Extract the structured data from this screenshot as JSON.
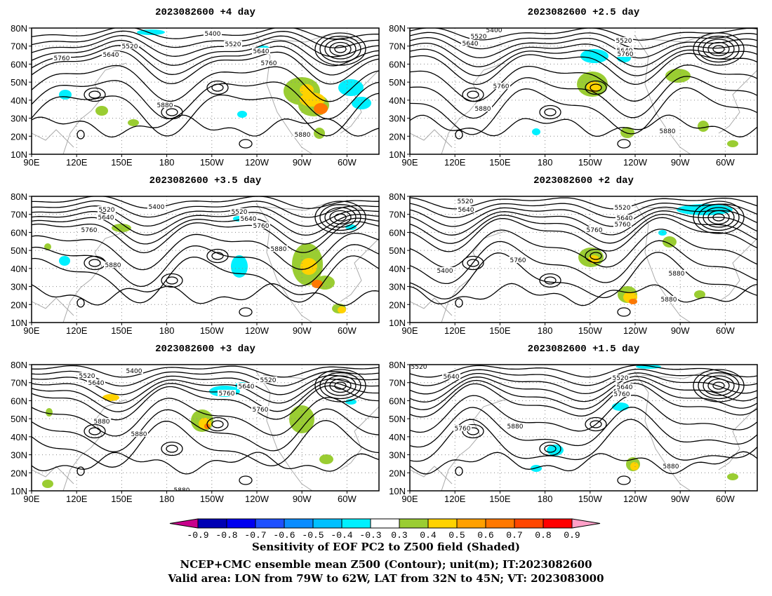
{
  "panels": [
    {
      "title": "2023082600  +4 day",
      "contour_labels": [
        "5400",
        "5520",
        "5520",
        "5640",
        "5640",
        "5760",
        "5760",
        "5880",
        "5880"
      ]
    },
    {
      "title": "2023082600  +2.5 day",
      "contour_labels": [
        "5400",
        "5520",
        "5520",
        "5640",
        "5640",
        "5760",
        "5760",
        "5880",
        "5880"
      ]
    },
    {
      "title": "2023082600  +3.5 day",
      "contour_labels": [
        "5400",
        "5520",
        "5520",
        "5640",
        "5640",
        "5760",
        "5760",
        "5880",
        "5880"
      ]
    },
    {
      "title": "2023082600  +2 day",
      "contour_labels": [
        "5520",
        "5520",
        "5640",
        "5640",
        "5760",
        "5760",
        "5400",
        "5760",
        "5880",
        "5880"
      ]
    },
    {
      "title": "2023082600  +3 day",
      "contour_labels": [
        "5400",
        "5520",
        "5520",
        "5640",
        "5640",
        "5760",
        "5760",
        "5880",
        "5880",
        "5880"
      ]
    },
    {
      "title": "2023082600  +1.5 day",
      "contour_labels": [
        "5520",
        "5640",
        "5520",
        "5640",
        "5760",
        "5760",
        "5880",
        "5880"
      ]
    }
  ],
  "lat_labels": [
    "80N",
    "70N",
    "60N",
    "50N",
    "40N",
    "30N",
    "20N",
    "10N"
  ],
  "lon_labels": [
    "90E",
    "120E",
    "150E",
    "180",
    "150W",
    "120W",
    "90W",
    "60W"
  ],
  "colorbar": {
    "ticks": [
      "-0.9",
      "-0.8",
      "-0.7",
      "-0.6",
      "-0.5",
      "-0.4",
      "-0.3",
      "0.3",
      "0.4",
      "0.5",
      "0.6",
      "0.7",
      "0.8",
      "0.9"
    ],
    "colors": [
      "#c8008c",
      "#0000b4",
      "#0000f0",
      "#1e50ff",
      "#0a8cff",
      "#00c0ff",
      "#00f0ff",
      "#ffffff",
      "#9acd32",
      "#ffd200",
      "#ffa000",
      "#ff7800",
      "#ff4600",
      "#ff0000",
      "#ffa0c8"
    ]
  },
  "captions": {
    "line1": "Sensitivity of EOF PC2 to Z500 field (Shaded)",
    "line2": "NCEP+CMC ensemble mean Z500 (Contour); unit(m); IT:2023082600",
    "line3": "Valid area: LON from 79W to 62W, LAT from 32N to 45N; VT: 2023083000"
  },
  "chart_data": {
    "type": "heatmap",
    "description_fields": {
      "lat_range": [
        "10N",
        "80N"
      ],
      "lon_range": [
        "90E",
        "50W"
      ],
      "contour_variable": "Z500",
      "shaded_variable": "Sensitivity of EOF PC2"
    }
  }
}
